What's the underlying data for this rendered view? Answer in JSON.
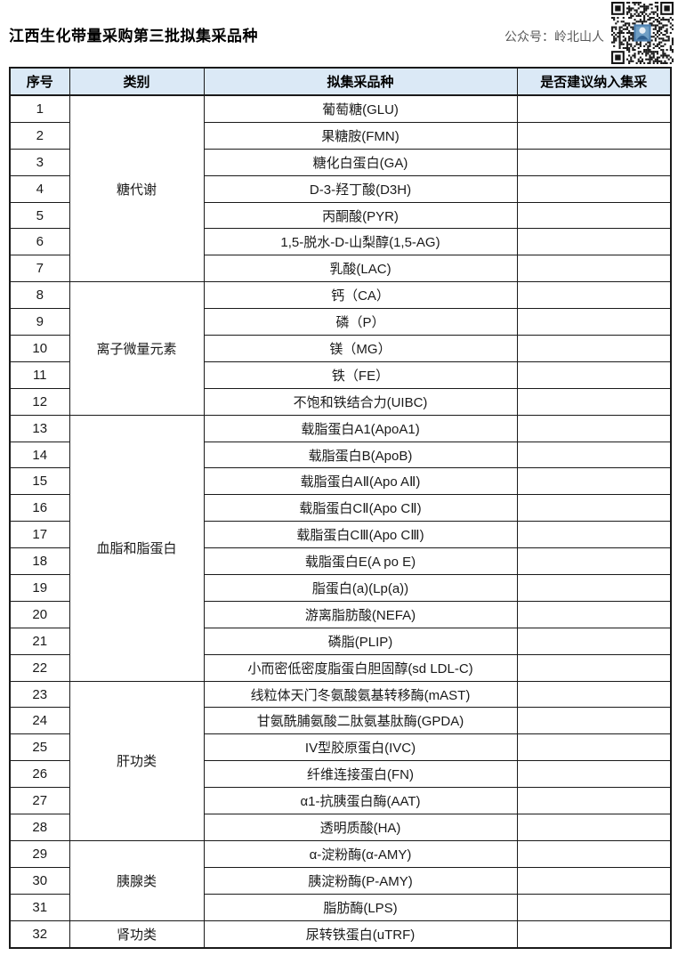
{
  "page": {
    "title": "江西生化带量采购第三批拟集采品种",
    "wechat_label": "公众号：岭北山人"
  },
  "icons": {
    "qr_code": "qr-code"
  },
  "colors": {
    "header_bg": "#dbe9f6",
    "border": "#1a1a1a",
    "wechat_text": "#595959",
    "qr_center_blue": "#6f9ec4"
  },
  "table": {
    "headers": [
      "序号",
      "类别",
      "拟集采品种",
      "是否建议纳入集采"
    ],
    "groups": [
      {
        "category": "糖代谢",
        "items": [
          {
            "no": "1",
            "name": "葡萄糖(GLU)",
            "decision": ""
          },
          {
            "no": "2",
            "name": "果糖胺(FMN)",
            "decision": ""
          },
          {
            "no": "3",
            "name": "糖化白蛋白(GA)",
            "decision": ""
          },
          {
            "no": "4",
            "name": "D-3-羟丁酸(D3H)",
            "decision": ""
          },
          {
            "no": "5",
            "name": "丙酮酸(PYR)",
            "decision": ""
          },
          {
            "no": "6",
            "name": "1,5-脱水-D-山梨醇(1,5-AG)",
            "decision": ""
          },
          {
            "no": "7",
            "name": "乳酸(LAC)",
            "decision": ""
          }
        ]
      },
      {
        "category": "离子微量元素",
        "items": [
          {
            "no": "8",
            "name": "钙（CA）",
            "decision": ""
          },
          {
            "no": "9",
            "name": "磷（P）",
            "decision": ""
          },
          {
            "no": "10",
            "name": "镁（MG）",
            "decision": ""
          },
          {
            "no": "11",
            "name": "铁（FE）",
            "decision": ""
          },
          {
            "no": "12",
            "name": "不饱和铁结合力(UIBC)",
            "decision": ""
          }
        ]
      },
      {
        "category": "血脂和脂蛋白",
        "items": [
          {
            "no": "13",
            "name": "载脂蛋白A1(ApoA1)",
            "decision": ""
          },
          {
            "no": "14",
            "name": "载脂蛋白B(ApoB)",
            "decision": ""
          },
          {
            "no": "15",
            "name": "载脂蛋白AⅡ(Apo AⅡ)",
            "decision": ""
          },
          {
            "no": "16",
            "name": "载脂蛋白CⅡ(Apo CⅡ)",
            "decision": ""
          },
          {
            "no": "17",
            "name": "载脂蛋白CⅢ(Apo CⅢ)",
            "decision": ""
          },
          {
            "no": "18",
            "name": "载脂蛋白E(A po E)",
            "decision": ""
          },
          {
            "no": "19",
            "name": "脂蛋白(a)(Lp(a))",
            "decision": ""
          },
          {
            "no": "20",
            "name": "游离脂肪酸(NEFA)",
            "decision": ""
          },
          {
            "no": "21",
            "name": "磷脂(PLIP)",
            "decision": ""
          },
          {
            "no": "22",
            "name": "小而密低密度脂蛋白胆固醇(sd LDL-C)",
            "decision": ""
          }
        ]
      },
      {
        "category": "肝功类",
        "items": [
          {
            "no": "23",
            "name": "线粒体天门冬氨酸氨基转移酶(mAST)",
            "decision": ""
          },
          {
            "no": "24",
            "name": "甘氨酰脯氨酸二肽氨基肽酶(GPDA)",
            "decision": ""
          },
          {
            "no": "25",
            "name": "IV型胶原蛋白(IVC)",
            "decision": ""
          },
          {
            "no": "26",
            "name": "纤维连接蛋白(FN)",
            "decision": ""
          },
          {
            "no": "27",
            "name": "α1-抗胰蛋白酶(AAT)",
            "decision": ""
          },
          {
            "no": "28",
            "name": "透明质酸(HA)",
            "decision": ""
          }
        ]
      },
      {
        "category": "胰腺类",
        "items": [
          {
            "no": "29",
            "name": "α-淀粉酶(α-AMY)",
            "decision": ""
          },
          {
            "no": "30",
            "name": "胰淀粉酶(P-AMY)",
            "decision": ""
          },
          {
            "no": "31",
            "name": "脂肪酶(LPS)",
            "decision": ""
          }
        ]
      },
      {
        "category": "肾功类",
        "items": [
          {
            "no": "32",
            "name": "尿转铁蛋白(uTRF)",
            "decision": ""
          }
        ]
      }
    ]
  }
}
